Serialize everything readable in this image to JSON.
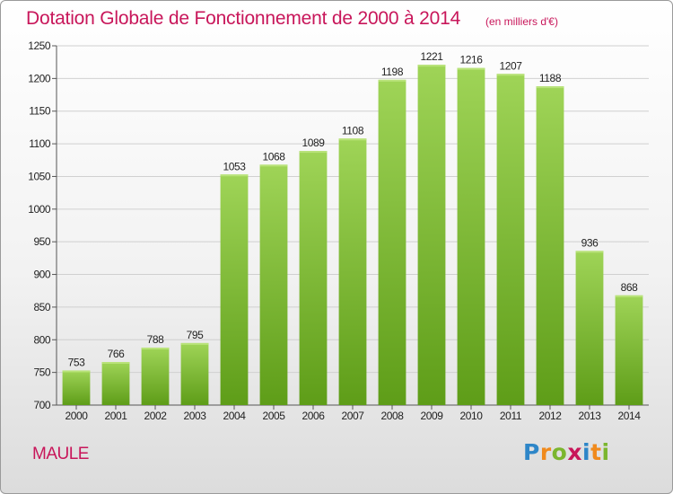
{
  "title": "Dotation Globale de Fonctionnement de 2000 à 2014",
  "subtitle": "(en milliers d'€)",
  "commune": "MAULE",
  "logo": {
    "letters": [
      "P",
      "r",
      "o",
      "x",
      "i",
      "t",
      "i"
    ],
    "colors": [
      "#2e86c8",
      "#f08a1c",
      "#7bb62e",
      "#c8165a",
      "#2e86c8",
      "#f08a1c",
      "#7bb62e"
    ]
  },
  "colors": {
    "bar_top": "#9fd457",
    "bar_bottom": "#5e9d18",
    "title": "#c8165a",
    "grid": "#d0d0d0"
  },
  "chart_data": {
    "type": "bar",
    "title": "Dotation Globale de Fonctionnement de 2000 à 2014",
    "subtitle": "(en milliers d'€)",
    "xlabel": "",
    "ylabel": "",
    "ylim": [
      700,
      1250
    ],
    "yticks": [
      700,
      750,
      800,
      850,
      900,
      950,
      1000,
      1050,
      1100,
      1150,
      1200,
      1250
    ],
    "grid": true,
    "categories": [
      "2000",
      "2001",
      "2002",
      "2003",
      "2004",
      "2005",
      "2006",
      "2007",
      "2008",
      "2009",
      "2010",
      "2011",
      "2012",
      "2013",
      "2014"
    ],
    "values": [
      753,
      766,
      788,
      795,
      1053,
      1068,
      1089,
      1108,
      1198,
      1221,
      1216,
      1207,
      1188,
      936,
      868
    ]
  }
}
